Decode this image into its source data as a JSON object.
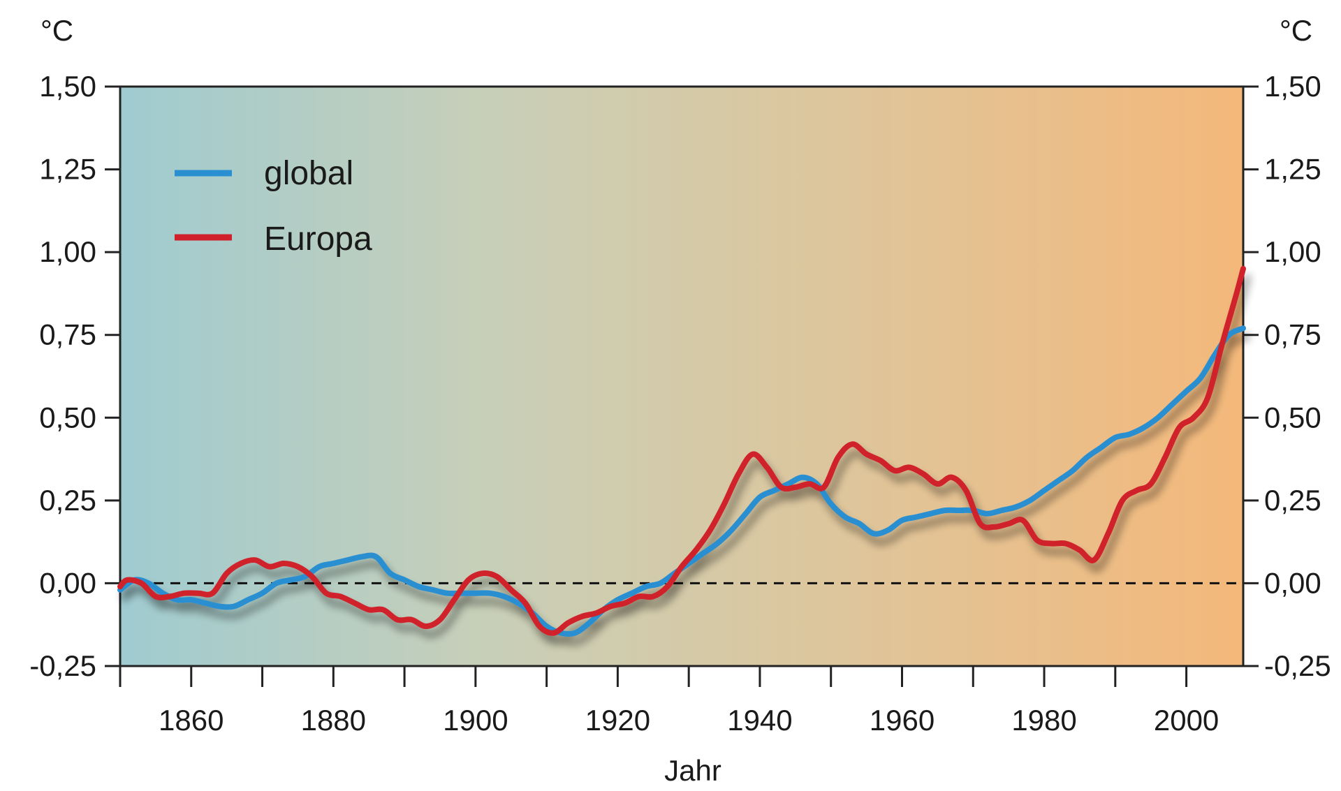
{
  "chart_data": {
    "type": "line",
    "title": "",
    "xlabel": "Jahr",
    "ylabel_left": "°C",
    "ylabel_right": "°C",
    "xlim": [
      1850,
      2008
    ],
    "ylim": [
      -0.25,
      1.5
    ],
    "x_ticks": [
      1850,
      1860,
      1870,
      1880,
      1890,
      1900,
      1910,
      1920,
      1930,
      1940,
      1950,
      1960,
      1970,
      1980,
      1990,
      2000
    ],
    "x_tick_labels": [
      {
        "value": 1860,
        "label": "1860"
      },
      {
        "value": 1880,
        "label": "1880"
      },
      {
        "value": 1900,
        "label": "1900"
      },
      {
        "value": 1920,
        "label": "1920"
      },
      {
        "value": 1940,
        "label": "1940"
      },
      {
        "value": 1960,
        "label": "1960"
      },
      {
        "value": 1980,
        "label": "1980"
      },
      {
        "value": 2000,
        "label": "2000"
      }
    ],
    "y_ticks": [
      {
        "value": 1.5,
        "label": "1,50"
      },
      {
        "value": 1.25,
        "label": "1,25"
      },
      {
        "value": 1.0,
        "label": "1,00"
      },
      {
        "value": 0.75,
        "label": "0,75"
      },
      {
        "value": 0.5,
        "label": "0,50"
      },
      {
        "value": 0.25,
        "label": "0,25"
      },
      {
        "value": 0.0,
        "label": "0,00"
      },
      {
        "value": -0.25,
        "label": "-0,25"
      }
    ],
    "reference_line": {
      "y": 0.0,
      "style": "dashed"
    },
    "background_gradient": [
      "#9fcbd0",
      "#c8cfb8",
      "#dfc59a",
      "#f4b87a"
    ],
    "legend_position": "top-left",
    "series": [
      {
        "name": "global",
        "color": "#2a8fd0",
        "points": [
          [
            1850,
            -0.02
          ],
          [
            1852,
            0.01
          ],
          [
            1854,
            0.0
          ],
          [
            1856,
            -0.03
          ],
          [
            1858,
            -0.05
          ],
          [
            1860,
            -0.05
          ],
          [
            1862,
            -0.06
          ],
          [
            1864,
            -0.07
          ],
          [
            1866,
            -0.07
          ],
          [
            1868,
            -0.05
          ],
          [
            1870,
            -0.03
          ],
          [
            1872,
            0.0
          ],
          [
            1874,
            0.01
          ],
          [
            1876,
            0.02
          ],
          [
            1878,
            0.05
          ],
          [
            1880,
            0.06
          ],
          [
            1882,
            0.07
          ],
          [
            1884,
            0.08
          ],
          [
            1886,
            0.08
          ],
          [
            1888,
            0.03
          ],
          [
            1890,
            0.01
          ],
          [
            1892,
            -0.01
          ],
          [
            1894,
            -0.02
          ],
          [
            1896,
            -0.03
          ],
          [
            1898,
            -0.03
          ],
          [
            1900,
            -0.03
          ],
          [
            1902,
            -0.03
          ],
          [
            1904,
            -0.04
          ],
          [
            1906,
            -0.06
          ],
          [
            1908,
            -0.09
          ],
          [
            1910,
            -0.13
          ],
          [
            1912,
            -0.15
          ],
          [
            1914,
            -0.15
          ],
          [
            1916,
            -0.12
          ],
          [
            1918,
            -0.08
          ],
          [
            1920,
            -0.05
          ],
          [
            1922,
            -0.03
          ],
          [
            1924,
            -0.01
          ],
          [
            1926,
            0.0
          ],
          [
            1928,
            0.03
          ],
          [
            1930,
            0.06
          ],
          [
            1932,
            0.09
          ],
          [
            1934,
            0.12
          ],
          [
            1936,
            0.16
          ],
          [
            1938,
            0.21
          ],
          [
            1940,
            0.26
          ],
          [
            1942,
            0.28
          ],
          [
            1944,
            0.3
          ],
          [
            1946,
            0.32
          ],
          [
            1948,
            0.3
          ],
          [
            1950,
            0.24
          ],
          [
            1952,
            0.2
          ],
          [
            1954,
            0.18
          ],
          [
            1956,
            0.15
          ],
          [
            1958,
            0.16
          ],
          [
            1960,
            0.19
          ],
          [
            1962,
            0.2
          ],
          [
            1964,
            0.21
          ],
          [
            1966,
            0.22
          ],
          [
            1968,
            0.22
          ],
          [
            1970,
            0.22
          ],
          [
            1972,
            0.21
          ],
          [
            1974,
            0.22
          ],
          [
            1976,
            0.23
          ],
          [
            1978,
            0.25
          ],
          [
            1980,
            0.28
          ],
          [
            1982,
            0.31
          ],
          [
            1984,
            0.34
          ],
          [
            1986,
            0.38
          ],
          [
            1988,
            0.41
          ],
          [
            1990,
            0.44
          ],
          [
            1992,
            0.45
          ],
          [
            1994,
            0.47
          ],
          [
            1996,
            0.5
          ],
          [
            1998,
            0.54
          ],
          [
            2000,
            0.58
          ],
          [
            2002,
            0.62
          ],
          [
            2004,
            0.69
          ],
          [
            2006,
            0.75
          ],
          [
            2008,
            0.77
          ]
        ]
      },
      {
        "name": "Europa",
        "color": "#d0202a",
        "points": [
          [
            1850,
            -0.01
          ],
          [
            1851,
            0.01
          ],
          [
            1853,
            0.0
          ],
          [
            1855,
            -0.04
          ],
          [
            1857,
            -0.04
          ],
          [
            1859,
            -0.03
          ],
          [
            1861,
            -0.03
          ],
          [
            1863,
            -0.03
          ],
          [
            1865,
            0.03
          ],
          [
            1867,
            0.06
          ],
          [
            1869,
            0.07
          ],
          [
            1871,
            0.05
          ],
          [
            1873,
            0.06
          ],
          [
            1875,
            0.05
          ],
          [
            1877,
            0.02
          ],
          [
            1879,
            -0.03
          ],
          [
            1881,
            -0.04
          ],
          [
            1883,
            -0.06
          ],
          [
            1885,
            -0.08
          ],
          [
            1887,
            -0.08
          ],
          [
            1889,
            -0.11
          ],
          [
            1891,
            -0.11
          ],
          [
            1893,
            -0.13
          ],
          [
            1895,
            -0.11
          ],
          [
            1897,
            -0.05
          ],
          [
            1899,
            0.01
          ],
          [
            1901,
            0.03
          ],
          [
            1903,
            0.02
          ],
          [
            1905,
            -0.02
          ],
          [
            1907,
            -0.06
          ],
          [
            1909,
            -0.13
          ],
          [
            1911,
            -0.15
          ],
          [
            1913,
            -0.12
          ],
          [
            1915,
            -0.1
          ],
          [
            1917,
            -0.09
          ],
          [
            1919,
            -0.07
          ],
          [
            1921,
            -0.06
          ],
          [
            1923,
            -0.04
          ],
          [
            1925,
            -0.04
          ],
          [
            1927,
            -0.01
          ],
          [
            1929,
            0.05
          ],
          [
            1931,
            0.1
          ],
          [
            1933,
            0.16
          ],
          [
            1935,
            0.24
          ],
          [
            1937,
            0.33
          ],
          [
            1939,
            0.39
          ],
          [
            1941,
            0.35
          ],
          [
            1943,
            0.29
          ],
          [
            1945,
            0.29
          ],
          [
            1947,
            0.3
          ],
          [
            1949,
            0.29
          ],
          [
            1951,
            0.38
          ],
          [
            1953,
            0.42
          ],
          [
            1955,
            0.39
          ],
          [
            1957,
            0.37
          ],
          [
            1959,
            0.34
          ],
          [
            1961,
            0.35
          ],
          [
            1963,
            0.33
          ],
          [
            1965,
            0.3
          ],
          [
            1967,
            0.32
          ],
          [
            1969,
            0.28
          ],
          [
            1971,
            0.18
          ],
          [
            1973,
            0.17
          ],
          [
            1975,
            0.18
          ],
          [
            1977,
            0.19
          ],
          [
            1979,
            0.13
          ],
          [
            1981,
            0.12
          ],
          [
            1983,
            0.12
          ],
          [
            1985,
            0.1
          ],
          [
            1987,
            0.07
          ],
          [
            1989,
            0.15
          ],
          [
            1991,
            0.25
          ],
          [
            1993,
            0.28
          ],
          [
            1995,
            0.3
          ],
          [
            1997,
            0.38
          ],
          [
            1999,
            0.47
          ],
          [
            2001,
            0.5
          ],
          [
            2003,
            0.56
          ],
          [
            2005,
            0.72
          ],
          [
            2007,
            0.87
          ],
          [
            2008,
            0.95
          ]
        ]
      }
    ]
  }
}
